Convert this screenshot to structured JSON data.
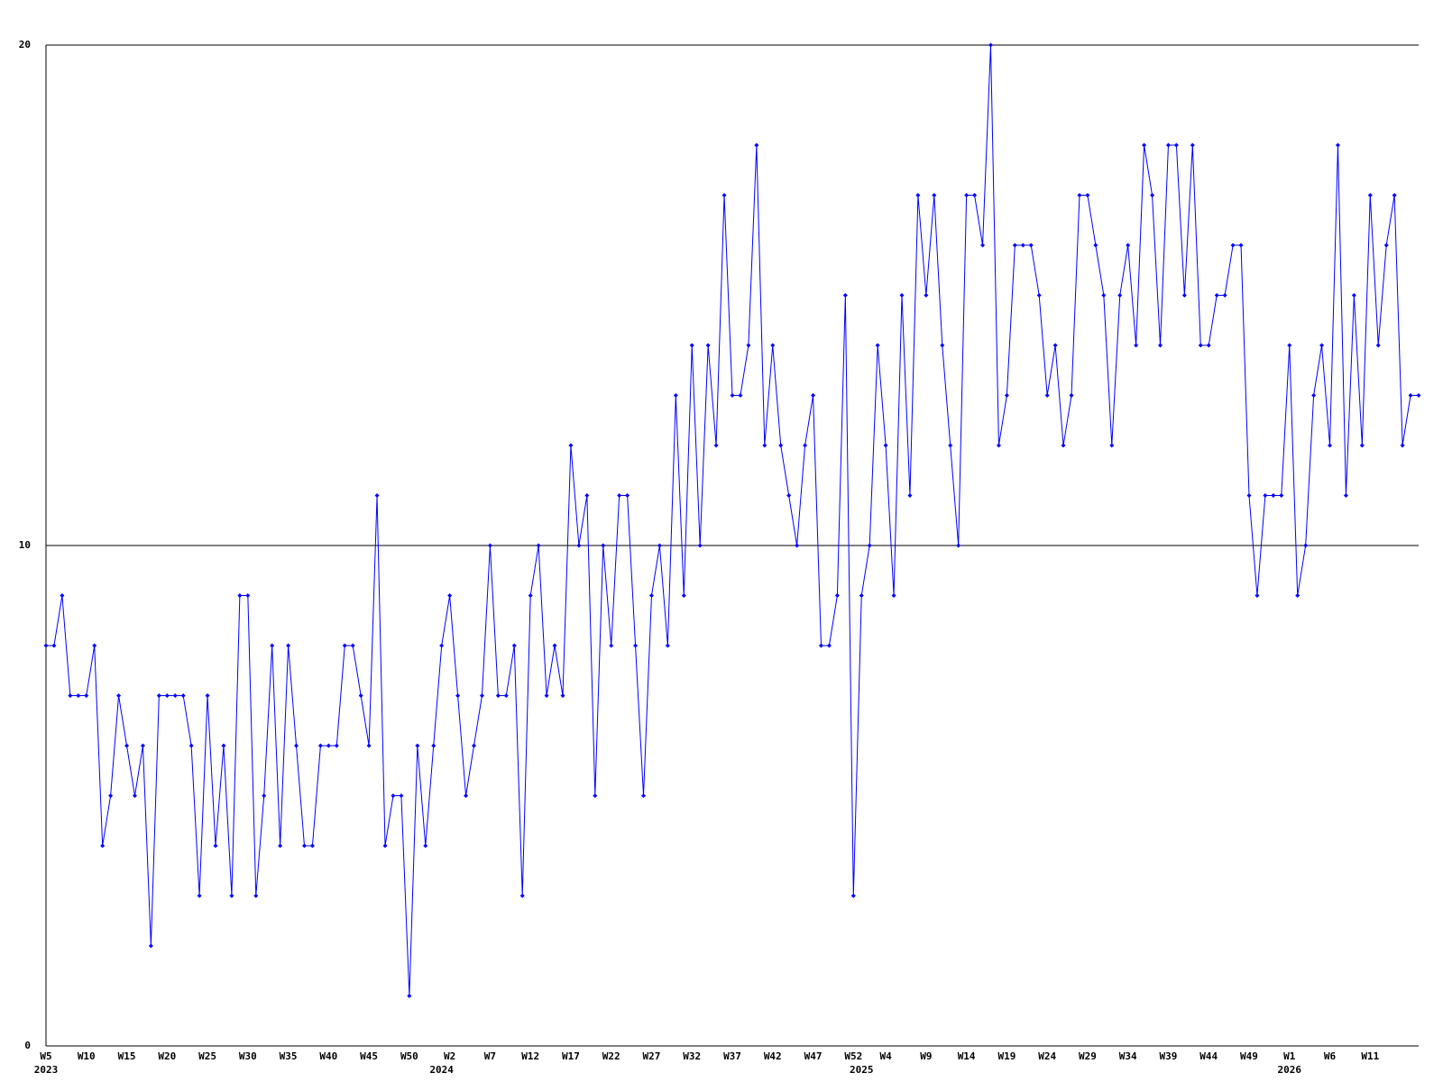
{
  "chart_data": {
    "type": "line",
    "categories": [
      "W5",
      null,
      null,
      null,
      null,
      "W10",
      null,
      null,
      null,
      null,
      "W15",
      null,
      null,
      null,
      null,
      "W20",
      null,
      null,
      null,
      null,
      "W25",
      null,
      null,
      null,
      null,
      "W30",
      null,
      null,
      null,
      null,
      "W35",
      null,
      null,
      null,
      null,
      "W40",
      null,
      null,
      null,
      null,
      "W45",
      null,
      null,
      null,
      null,
      "W50",
      null,
      null,
      null,
      null,
      "W2",
      null,
      null,
      null,
      null,
      "W7",
      null,
      null,
      null,
      null,
      "W12",
      null,
      null,
      null,
      null,
      "W17",
      null,
      null,
      null,
      null,
      "W22",
      null,
      null,
      null,
      null,
      "W27",
      null,
      null,
      null,
      null,
      "W32",
      null,
      null,
      null,
      null,
      "W37",
      null,
      null,
      null,
      null,
      "W42",
      null,
      null,
      null,
      null,
      "W47",
      null,
      null,
      null,
      null,
      "W52",
      null,
      null,
      null,
      "W4",
      null,
      null,
      null,
      null,
      "W9",
      null,
      null,
      null,
      null,
      "W14",
      null,
      null,
      null,
      null,
      "W19",
      null,
      null,
      null,
      null,
      "W24",
      null,
      null,
      null,
      null,
      "W29",
      null,
      null,
      null,
      null,
      "W34",
      null,
      null,
      null,
      null,
      "W39",
      null,
      null,
      null,
      null,
      "W44",
      null,
      null,
      null,
      null,
      "W49",
      null,
      null,
      null,
      null,
      "W1",
      null,
      null,
      null,
      null,
      "W6",
      null,
      null,
      null,
      null,
      "W11",
      null,
      null,
      null,
      null,
      null,
      null
    ],
    "category_years": [
      "2023",
      null,
      null,
      null,
      null,
      null,
      null,
      null,
      null,
      null,
      null,
      null,
      null,
      null,
      null,
      null,
      null,
      null,
      null,
      null,
      null,
      null,
      null,
      null,
      null,
      null,
      null,
      null,
      null,
      null,
      null,
      null,
      null,
      null,
      null,
      null,
      null,
      null,
      null,
      null,
      null,
      null,
      null,
      null,
      null,
      null,
      null,
      null,
      null,
      "2024",
      null,
      null,
      null,
      null,
      null,
      null,
      null,
      null,
      null,
      null,
      null,
      null,
      null,
      null,
      null,
      null,
      null,
      null,
      null,
      null,
      null,
      null,
      null,
      null,
      null,
      null,
      null,
      null,
      null,
      null,
      null,
      null,
      null,
      null,
      null,
      null,
      null,
      null,
      null,
      null,
      null,
      null,
      null,
      null,
      null,
      null,
      null,
      null,
      null,
      null,
      null,
      "2025",
      null,
      null,
      null,
      null,
      null,
      null,
      null,
      null,
      null,
      null,
      null,
      null,
      null,
      null,
      null,
      null,
      null,
      null,
      null,
      null,
      null,
      null,
      null,
      null,
      null,
      null,
      null,
      null,
      null,
      null,
      null,
      null,
      null,
      null,
      null,
      null,
      null,
      null,
      null,
      null,
      null,
      null,
      null,
      null,
      null,
      null,
      null,
      null,
      null,
      null,
      null,
      null,
      "2026",
      null,
      null,
      null,
      null,
      null,
      null,
      null,
      null,
      null,
      null,
      null,
      null,
      null,
      null,
      null,
      null
    ],
    "values": [
      8,
      8,
      9,
      7,
      7,
      7,
      8,
      4,
      5,
      7,
      6,
      5,
      6,
      2,
      7,
      7,
      7,
      7,
      6,
      3,
      7,
      4,
      6,
      3,
      9,
      9,
      3,
      5,
      8,
      4,
      8,
      6,
      4,
      4,
      6,
      6,
      6,
      8,
      8,
      7,
      6,
      11,
      4,
      5,
      5,
      1,
      6,
      4,
      6,
      8,
      9,
      7,
      5,
      6,
      7,
      10,
      7,
      7,
      8,
      3,
      9,
      10,
      7,
      8,
      7,
      12,
      10,
      11,
      5,
      10,
      8,
      11,
      11,
      8,
      5,
      9,
      10,
      8,
      13,
      9,
      14,
      10,
      14,
      12,
      17,
      13,
      13,
      14,
      18,
      12,
      14,
      12,
      11,
      10,
      12,
      13,
      8,
      8,
      9,
      15,
      3,
      9,
      10,
      14,
      12,
      9,
      15,
      11,
      17,
      15,
      17,
      14,
      12,
      10,
      17,
      17,
      16,
      20,
      12,
      13,
      16,
      16,
      16,
      15,
      13,
      14,
      12,
      13,
      17,
      17,
      16,
      15,
      12,
      15,
      16,
      14,
      18,
      17,
      14,
      18,
      18,
      15,
      18,
      14,
      14,
      15,
      15,
      16,
      16,
      11,
      9,
      11,
      11,
      11,
      14,
      9,
      10,
      13,
      14,
      12,
      18,
      11,
      15,
      12,
      17,
      14,
      16,
      17,
      12,
      13,
      13
    ],
    "color": "#0000ff",
    "ylim": [
      0,
      20
    ],
    "yticks": [
      0,
      10,
      20
    ],
    "grid": true
  }
}
